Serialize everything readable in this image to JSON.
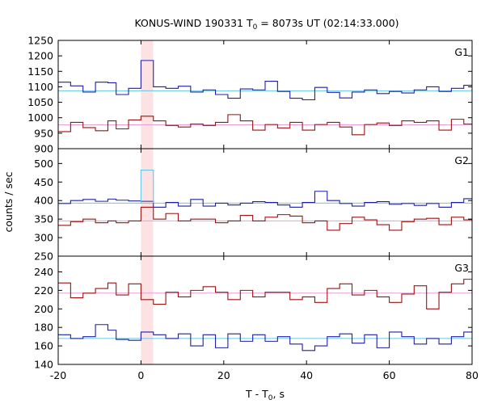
{
  "chart_data": {
    "type": "line",
    "title_main": "KONUS-WIND 190331 T",
    "title_sub": "0",
    "title_rest": " = 8073s UT (02:14:33.000)",
    "xlabel_main": "T - T",
    "xlabel_sub": "0",
    "xlabel_rest": ", s",
    "ylabel": "counts / sec",
    "x_range": [
      -20,
      80
    ],
    "x_ticks": [
      -20,
      0,
      20,
      40,
      60,
      80
    ],
    "highlight_interval": [
      0,
      2.944
    ],
    "colors": {
      "blue_series": "#1f1fa8",
      "red_series": "#a01010",
      "blue_background": "#66c6e6",
      "red_background": "#e6a0d6",
      "highlight": "#fde2e4"
    },
    "panels": [
      {
        "name": "G1",
        "y_range": [
          900,
          1250
        ],
        "y_ticks": [
          900,
          950,
          1000,
          1050,
          1100,
          1150,
          1200,
          1250
        ],
        "series": [
          {
            "color": "blue",
            "x": [
              -20,
              -17,
              -14,
              -11,
              -8,
              -6,
              -3,
              0,
              3,
              6,
              9,
              12,
              15,
              18,
              21,
              24,
              27,
              30,
              33,
              36,
              39,
              42,
              45,
              48,
              51,
              54,
              57,
              60,
              63,
              66,
              69,
              72,
              75,
              78,
              80
            ],
            "values": [
              1115,
              1103,
              1083,
              1115,
              1113,
              1075,
              1095,
              1185,
              1100,
              1095,
              1102,
              1083,
              1090,
              1075,
              1063,
              1093,
              1090,
              1118,
              1085,
              1063,
              1058,
              1098,
              1082,
              1064,
              1083,
              1090,
              1078,
              1085,
              1080,
              1090,
              1100,
              1085,
              1095,
              1105,
              1095
            ],
            "background": 1087
          },
          {
            "color": "red",
            "x": [
              -20,
              -17,
              -14,
              -11,
              -8,
              -6,
              -3,
              0,
              3,
              6,
              9,
              12,
              15,
              18,
              21,
              24,
              27,
              30,
              33,
              36,
              39,
              42,
              45,
              48,
              51,
              54,
              57,
              60,
              63,
              66,
              69,
              72,
              75,
              78,
              80
            ],
            "values": [
              955,
              985,
              968,
              958,
              990,
              964,
              993,
              1005,
              990,
              975,
              970,
              980,
              975,
              985,
              1010,
              990,
              960,
              978,
              967,
              985,
              960,
              978,
              985,
              970,
              945,
              978,
              983,
              975,
              990,
              985,
              990,
              960,
              995,
              980,
              1005
            ],
            "background": 977
          }
        ]
      },
      {
        "name": "G2",
        "y_range": [
          250,
          540
        ],
        "y_ticks": [
          250,
          300,
          350,
          400,
          450,
          500
        ],
        "series": [
          {
            "color": "blue",
            "x": [
              -20,
              -17,
              -14,
              -11,
              -8,
              -6,
              -3,
              0,
              3,
              6,
              9,
              12,
              15,
              18,
              21,
              24,
              27,
              30,
              33,
              36,
              39,
              42,
              45,
              48,
              51,
              54,
              57,
              60,
              63,
              66,
              69,
              72,
              75,
              78,
              80
            ],
            "values": [
              392,
              400,
              403,
              398,
              404,
              401,
              399,
              398,
              382,
              395,
              385,
              403,
              385,
              393,
              388,
              393,
              397,
              395,
              388,
              382,
              395,
              425,
              400,
              392,
              385,
              395,
              397,
              390,
              392,
              387,
              392,
              382,
              395,
              405,
              398
            ],
            "background": 393
          },
          {
            "color": "blue_background",
            "x": [
              0,
              3
            ],
            "values": [
              482
            ],
            "background": null
          },
          {
            "color": "red",
            "x": [
              -20,
              -17,
              -14,
              -11,
              -8,
              -6,
              -3,
              0,
              3,
              6,
              9,
              12,
              15,
              18,
              21,
              24,
              27,
              30,
              33,
              36,
              39,
              42,
              45,
              48,
              51,
              54,
              57,
              60,
              63,
              66,
              69,
              72,
              75,
              78,
              80
            ],
            "values": [
              333,
              343,
              350,
              340,
              345,
              340,
              345,
              382,
              350,
              365,
              345,
              350,
              350,
              340,
              345,
              360,
              345,
              355,
              362,
              358,
              340,
              345,
              320,
              338,
              355,
              348,
              335,
              320,
              343,
              350,
              352,
              335,
              355,
              348,
              338
            ],
            "background": 345
          }
        ]
      },
      {
        "name": "G3",
        "y_range": [
          140,
          257
        ],
        "y_ticks": [
          140,
          160,
          180,
          200,
          220,
          240
        ],
        "series": [
          {
            "color": "red",
            "x": [
              -20,
              -17,
              -14,
              -11,
              -8,
              -6,
              -3,
              0,
              3,
              6,
              9,
              12,
              15,
              18,
              21,
              24,
              27,
              30,
              33,
              36,
              39,
              42,
              45,
              48,
              51,
              54,
              57,
              60,
              63,
              66,
              69,
              72,
              75,
              78,
              80
            ],
            "values": [
              228,
              212,
              217,
              222,
              228,
              215,
              227,
              210,
              205,
              218,
              213,
              220,
              224,
              218,
              210,
              220,
              213,
              218,
              218,
              210,
              213,
              207,
              222,
              227,
              215,
              220,
              213,
              207,
              216,
              225,
              200,
              218,
              227,
              232,
              218
            ],
            "background": 217
          },
          {
            "color": "blue",
            "x": [
              -20,
              -17,
              -14,
              -11,
              -8,
              -6,
              -3,
              0,
              3,
              6,
              9,
              12,
              15,
              18,
              21,
              24,
              27,
              30,
              33,
              36,
              39,
              42,
              45,
              48,
              51,
              54,
              57,
              60,
              63,
              66,
              69,
              72,
              75,
              78,
              80
            ],
            "values": [
              172,
              168,
              170,
              183,
              177,
              167,
              166,
              175,
              172,
              168,
              173,
              160,
              172,
              158,
              173,
              165,
              172,
              165,
              170,
              162,
              155,
              160,
              170,
              173,
              163,
              172,
              158,
              175,
              170,
              162,
              168,
              162,
              170,
              175,
              170
            ],
            "background": 168
          }
        ]
      }
    ]
  }
}
